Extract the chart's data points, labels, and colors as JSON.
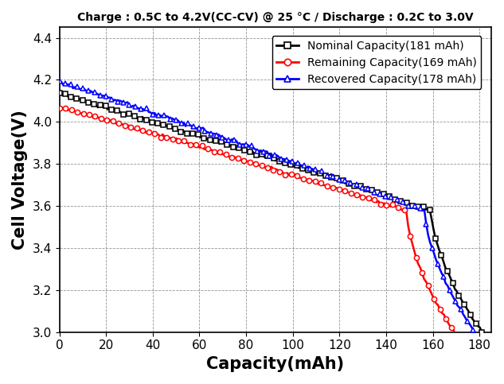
{
  "title": "Charge : 0.5C to 4.2V(CC-CV) @ 25 °C / Discharge : 0.2C to 3.0V",
  "xlabel": "Capacity(mAh)",
  "ylabel": "Cell Voltage(V)",
  "xlim": [
    0,
    185
  ],
  "ylim": [
    3.0,
    4.45
  ],
  "xticks": [
    0,
    20,
    40,
    60,
    80,
    100,
    120,
    140,
    160,
    180
  ],
  "yticks": [
    3.0,
    3.2,
    3.4,
    3.6,
    3.8,
    4.0,
    4.2,
    4.4
  ],
  "legend_labels": [
    "Nominal Capacity(181 mAh)",
    "Remaining Capacity(169 mAh)",
    "Recovered Capacity(178 mAh)"
  ],
  "nominal_capacity": 181,
  "remaining_capacity": 169,
  "recovered_capacity": 178,
  "background_color": "#ffffff",
  "grid_color": "#666666",
  "title_fontsize": 10,
  "label_fontsize": 15,
  "tick_fontsize": 11,
  "legend_fontsize": 10
}
